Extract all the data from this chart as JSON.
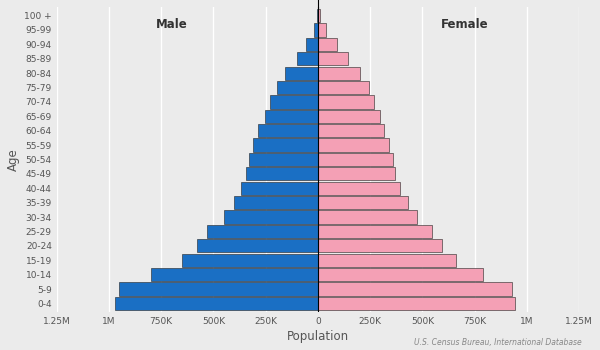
{
  "age_groups": [
    "0-4",
    "5-9",
    "10-14",
    "15-19",
    "20-24",
    "25-29",
    "30-34",
    "35-39",
    "40-44",
    "45-49",
    "50-54",
    "55-59",
    "60-64",
    "65-69",
    "70-74",
    "75-79",
    "80-84",
    "85-89",
    "90-94",
    "95-99",
    "100 +"
  ],
  "male": [
    970000,
    950000,
    800000,
    650000,
    580000,
    530000,
    450000,
    400000,
    370000,
    345000,
    330000,
    310000,
    285000,
    255000,
    230000,
    195000,
    155000,
    100000,
    55000,
    20000,
    5000
  ],
  "female": [
    945000,
    930000,
    790000,
    660000,
    595000,
    545000,
    475000,
    430000,
    395000,
    370000,
    360000,
    340000,
    315000,
    295000,
    270000,
    245000,
    200000,
    145000,
    90000,
    40000,
    12000
  ],
  "male_color": "#1a6fc4",
  "female_color": "#f4a0b5",
  "bar_edgecolor": "#222222",
  "bar_linewidth": 0.4,
  "xlim": 1250000,
  "xlabel": "Population",
  "ylabel": "Age",
  "male_label": "Male",
  "female_label": "Female",
  "source_text": "U.S. Census Bureau, International Database",
  "tick_values": [
    0,
    250000,
    500000,
    750000,
    1000000,
    1250000
  ],
  "tick_labels_right": [
    "0",
    "250K",
    "500K",
    "750K",
    "1M",
    "1.25M"
  ],
  "tick_labels_left": [
    "1.25M",
    "1M",
    "750K",
    "500K",
    "250K",
    ""
  ],
  "background_color": "#ebebeb",
  "gridcolor": "#ffffff",
  "bar_height": 0.92
}
